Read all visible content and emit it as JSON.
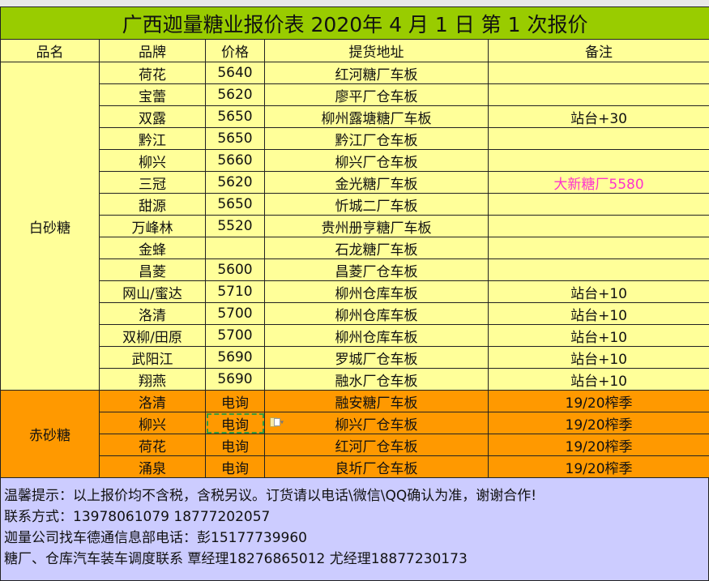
{
  "title": "广西迦量糖业报价表 2020年 4 月 1 日 第 1 次报价",
  "headers": [
    "品名",
    "品牌",
    "价格",
    "提货地址",
    "备注"
  ],
  "colors": {
    "title_bg": "#99cc00",
    "white_sugar_bg": "#ffff99",
    "brown_sugar_bg": "#ff9900",
    "notes_bg": "#ccccff",
    "highlight_note": "#ff33cc"
  },
  "white_sugar": {
    "category": "白砂糖",
    "rows": [
      {
        "brand": "荷花",
        "price": "5640",
        "address": "红河糖厂车板",
        "note": ""
      },
      {
        "brand": "宝蕾",
        "price": "5620",
        "address": "廖平厂仓车板",
        "note": ""
      },
      {
        "brand": "双露",
        "price": "5650",
        "address": "柳州露塘糖厂车板",
        "note": "站台+30"
      },
      {
        "brand": "黔江",
        "price": "5650",
        "address": "黔江厂仓车板",
        "note": ""
      },
      {
        "brand": "柳兴",
        "price": "5660",
        "address": "柳兴厂仓车板",
        "note": ""
      },
      {
        "brand": "三冠",
        "price": "5620",
        "address": "金光糖厂车板",
        "note": "大新糖厂5580"
      },
      {
        "brand": "甜源",
        "price": "5650",
        "address": "忻城二厂车板",
        "note": ""
      },
      {
        "brand": "万峰林",
        "price": "5520",
        "address": "贵州册亨糖厂车板",
        "note": ""
      },
      {
        "brand": "金蜂",
        "price": "",
        "address": "石龙糖厂车板",
        "note": ""
      },
      {
        "brand": "昌菱",
        "price": "5600",
        "address": "昌菱厂仓车板",
        "note": ""
      },
      {
        "brand": "网山/蜜达",
        "price": "5710",
        "address": "柳州仓库车板",
        "note": "站台+10"
      },
      {
        "brand": "洛清",
        "price": "5700",
        "address": "柳州仓库车板",
        "note": "站台+10"
      },
      {
        "brand": "双柳/田原",
        "price": "5700",
        "address": "柳州仓库车板",
        "note": "站台+10"
      },
      {
        "brand": "武阳江",
        "price": "5690",
        "address": "罗城厂仓车板",
        "note": "站台+10"
      },
      {
        "brand": "翔燕",
        "price": "5690",
        "address": "融水厂仓车板",
        "note": "站台+10"
      }
    ]
  },
  "brown_sugar": {
    "category": "赤砂糖",
    "rows": [
      {
        "brand": "洛清",
        "price": "电询",
        "address": "融安糖厂车板",
        "note": "19/20榨季"
      },
      {
        "brand": "柳兴",
        "price": "电询",
        "address": "柳兴厂仓车板",
        "note": "19/20榨季"
      },
      {
        "brand": "荷花",
        "price": "电询",
        "address": "红河厂仓车板",
        "note": "19/20榨季"
      },
      {
        "brand": "涌泉",
        "price": "电询",
        "address": "良圻厂仓车板",
        "note": "19/20榨季"
      }
    ]
  },
  "notes": [
    "温馨提示：以上报价均不含税，含税另议。订货请以电话\\微信\\QQ确认为准，谢谢合作!",
    "联系方式：13978061079 18777202057",
    "迦量公司找车德通信息部电话：彭15177739960",
    "糖厂、仓库汽车装车调度联系 覃经理18276865012    尤经理18877230173"
  ],
  "paste_options_icon": "paste-options-icon"
}
